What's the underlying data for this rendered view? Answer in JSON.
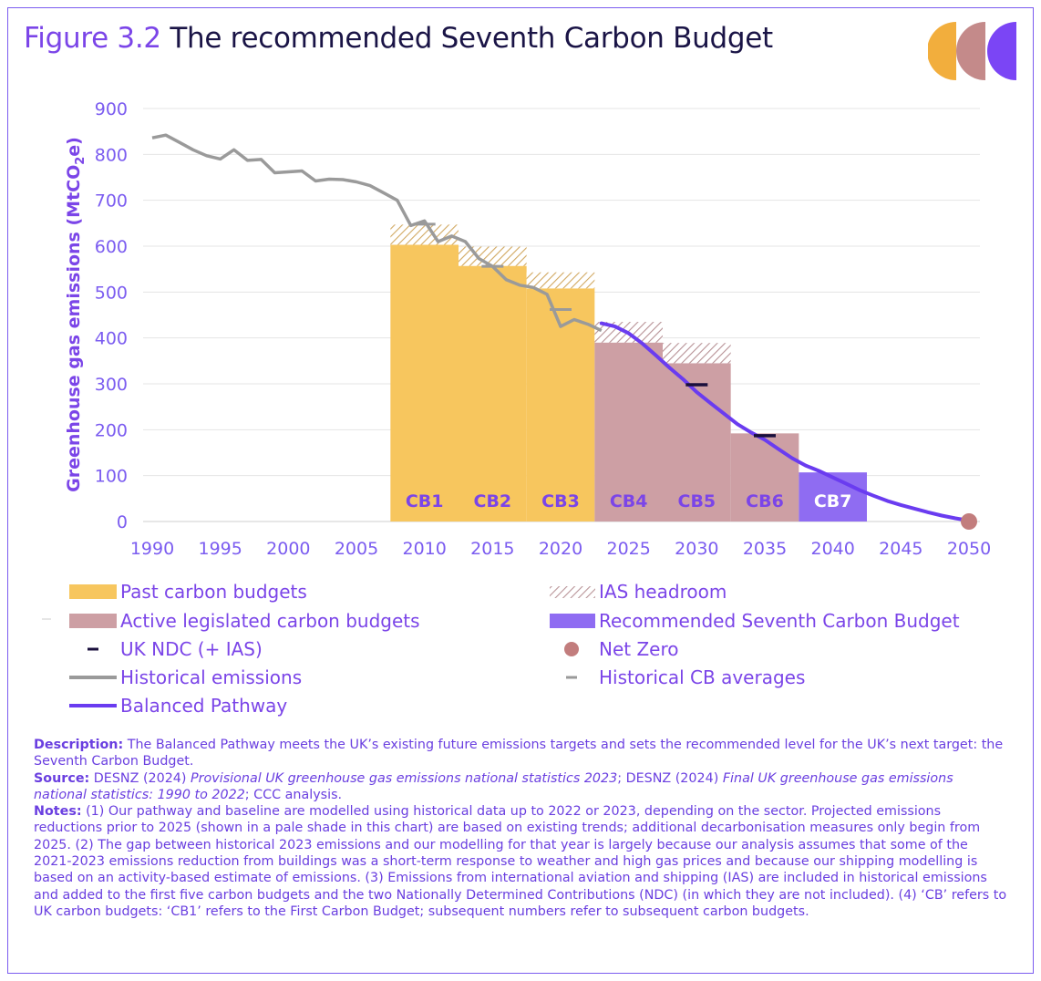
{
  "figure": {
    "number": "Figure 3.2",
    "title": "The recommended Seventh Carbon Budget"
  },
  "colors": {
    "past_budget": "#f7c65e",
    "active_budget": "#cd9fa4",
    "recommended_budget": "#8f6cf2",
    "historical": "#9a9a9a",
    "pathway": "#6a3cf0",
    "net_zero": "#c27d7d",
    "ndc": "#1a0f3c",
    "headroom": "#c8a46a",
    "text": "#7b5cf0",
    "logo": [
      "#f2ae3d",
      "#c48a8a",
      "#7b45f5"
    ]
  },
  "chart_data": {
    "type": "bar",
    "ylabel": "Greenhouse gas emissions (MtCO₂e)",
    "ylabel_main": "Greenhouse gas emissions (MtCO",
    "ylabel_sub": "2",
    "ylabel_end": "e)",
    "xlabel": "",
    "xlim": [
      1990,
      2050
    ],
    "ylim": [
      0,
      900
    ],
    "x_ticks": [
      "1990",
      "1995",
      "2000",
      "2005",
      "2010",
      "2015",
      "2020",
      "2025",
      "2030",
      "2035",
      "2040",
      "2045",
      "2050"
    ],
    "y_ticks": [
      "0",
      "100",
      "200",
      "300",
      "400",
      "500",
      "600",
      "700",
      "800",
      "900"
    ],
    "grid": true,
    "carbon_budgets": [
      {
        "label": "CB1",
        "start": 2008,
        "end": 2012,
        "value": 603,
        "headroom": 44,
        "category": "past"
      },
      {
        "label": "CB2",
        "start": 2013,
        "end": 2017,
        "value": 557,
        "headroom": 42,
        "category": "past"
      },
      {
        "label": "CB3",
        "start": 2018,
        "end": 2022,
        "value": 508,
        "headroom": 35,
        "category": "past"
      },
      {
        "label": "CB4",
        "start": 2023,
        "end": 2027,
        "value": 390,
        "headroom": 45,
        "category": "active"
      },
      {
        "label": "CB5",
        "start": 2028,
        "end": 2032,
        "value": 345,
        "headroom": 44,
        "category": "active"
      },
      {
        "label": "CB6",
        "start": 2033,
        "end": 2037,
        "value": 192,
        "headroom": 0,
        "category": "active"
      },
      {
        "label": "CB7",
        "start": 2038,
        "end": 2042,
        "value": 107,
        "headroom": 0,
        "category": "recommended"
      }
    ],
    "historical_emissions": {
      "x": [
        1990,
        1991,
        1992,
        1993,
        1994,
        1995,
        1996,
        1997,
        1998,
        1999,
        2000,
        2001,
        2002,
        2003,
        2004,
        2005,
        2006,
        2007,
        2008,
        2009,
        2010,
        2011,
        2012,
        2013,
        2014,
        2015,
        2016,
        2017,
        2018,
        2019,
        2020,
        2021,
        2022,
        2023
      ],
      "y": [
        836,
        842,
        826,
        810,
        797,
        790,
        810,
        787,
        789,
        760,
        762,
        764,
        742,
        746,
        745,
        740,
        732,
        716,
        700,
        645,
        655,
        610,
        622,
        610,
        573,
        556,
        527,
        515,
        510,
        495,
        425,
        440,
        430,
        416
      ]
    },
    "historical_cb_averages": [
      {
        "start": 2008,
        "end": 2012,
        "value": 648
      },
      {
        "start": 2013,
        "end": 2017,
        "value": 556
      },
      {
        "start": 2018,
        "end": 2022,
        "value": 462
      }
    ],
    "balanced_pathway": {
      "x": [
        2023,
        2024,
        2025,
        2026,
        2027,
        2028,
        2029,
        2030,
        2031,
        2032,
        2033,
        2034,
        2035,
        2036,
        2037,
        2038,
        2039,
        2040,
        2041,
        2042,
        2043,
        2044,
        2045,
        2046,
        2047,
        2048,
        2049,
        2050
      ],
      "y": [
        432,
        425,
        410,
        388,
        362,
        335,
        310,
        282,
        258,
        235,
        212,
        194,
        178,
        158,
        138,
        122,
        110,
        96,
        82,
        68,
        56,
        45,
        36,
        28,
        20,
        13,
        7,
        2
      ]
    },
    "uk_ndc": [
      {
        "x": 2030,
        "value": 298
      },
      {
        "x": 2035,
        "value": 187
      }
    ],
    "net_zero": {
      "x": 2050,
      "value": 0
    }
  },
  "legend": {
    "past": "Past carbon budgets",
    "active": "Active legislated carbon budgets",
    "ndc": "UK NDC (+ IAS)",
    "historical": "Historical emissions",
    "pathway": "Balanced Pathway",
    "headroom": "IAS headroom",
    "recommended": "Recommended Seventh Carbon Budget",
    "net_zero": "Net Zero",
    "cb_avg": "Historical CB averages"
  },
  "notes": {
    "desc_label": "Description:",
    "desc_text": " The Balanced Pathway meets the UK’s existing future emissions targets and sets the recommended level for the UK’s next target: the Seventh Carbon Budget.",
    "source_label": "Source:",
    "source_1": " DESNZ (2024) ",
    "source_2": "Provisional UK greenhouse gas emissions national statistics 2023",
    "source_3": "; DESNZ (2024) ",
    "source_4": "Final UK greenhouse gas emissions national statistics: 1990 to 2022",
    "source_5": "; CCC analysis.",
    "notes_label": "Notes:",
    "notes_text": " (1) Our pathway and baseline are modelled using historical data up to 2022 or 2023, depending on the sector. Projected emissions reductions prior to 2025 (shown in a pale shade in this chart) are based on existing trends; additional decarbonisation measures only begin from 2025. (2) The gap between historical 2023 emissions and our modelling for that year is largely because our analysis assumes that some of the 2021-2023 emissions reduction from buildings was a short-term response to weather and high gas prices and because our shipping modelling is based on an activity-based estimate of emissions. (3) Emissions from international aviation and shipping (IAS) are included in historical emissions and added to the first five carbon budgets and the two Nationally Determined Contributions (NDC) (in which they are not included). (4) ‘CB’ refers to UK carbon budgets: ‘CB1’ refers to the First Carbon Budget; subsequent numbers refer to subsequent carbon budgets."
  }
}
